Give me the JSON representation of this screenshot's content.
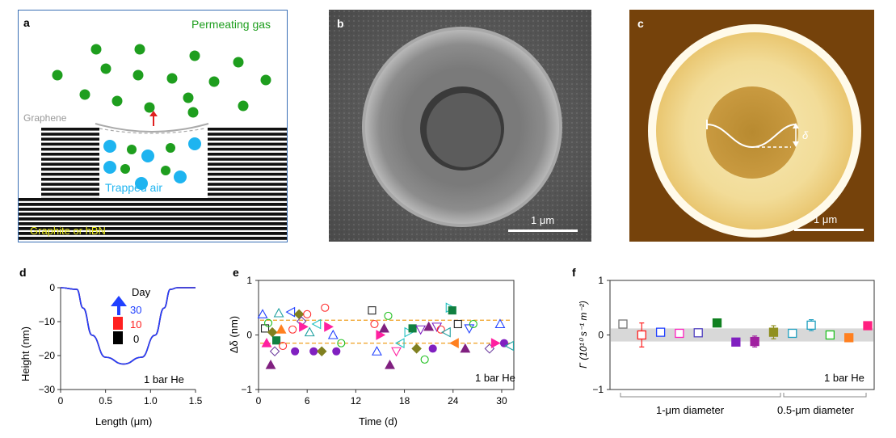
{
  "panel_a": {
    "label": "a",
    "permeating_gas": "Permeating gas",
    "graphene": "Graphene",
    "trapped_air": "Trapped air",
    "substrate": "Graphite or  hBN",
    "colors": {
      "gas_green": "#1e9e1e",
      "air_blue": "#1eb4f0",
      "arrow_red": "#e02020",
      "border": "#3a6fb5",
      "text_yellow": "#e8e81a"
    }
  },
  "panel_b": {
    "label": "b",
    "scale": "1 μm"
  },
  "panel_c": {
    "label": "c",
    "scale": "1 μm",
    "delta": "δ"
  },
  "chart_data": [
    {
      "panel": "d",
      "type": "line",
      "xlabel": "Length (μm)",
      "ylabel": "Height (nm)",
      "xlim": [
        0,
        1.5
      ],
      "ylim": [
        -30,
        0
      ],
      "xticks": [
        "0",
        "0.5",
        "1.0",
        "1.5"
      ],
      "yticks": [
        "0",
        "−10",
        "−20",
        "−30"
      ],
      "legend_title": "Day",
      "annotation": "1 bar He",
      "series": [
        {
          "name": "30",
          "color": "#2040ff",
          "x": [
            0,
            0.18,
            0.25,
            0.35,
            0.5,
            0.7,
            0.9,
            1.05,
            1.15,
            1.22,
            1.3,
            1.5
          ],
          "y": [
            0,
            -0.5,
            -6,
            -14,
            -20.5,
            -22.5,
            -20.5,
            -14,
            -6,
            -0.5,
            0,
            0
          ]
        },
        {
          "name": "10",
          "color": "#ff2020",
          "x": [
            0,
            0.18,
            0.25,
            0.35,
            0.5,
            0.7,
            0.9,
            1.05,
            1.15,
            1.22,
            1.3,
            1.5
          ],
          "y": [
            0,
            -0.5,
            -6,
            -14,
            -20.5,
            -22.5,
            -20.5,
            -14,
            -6,
            -0.5,
            0,
            0
          ]
        },
        {
          "name": "0",
          "color": "#000000",
          "x": [
            0,
            0.18,
            0.25,
            0.35,
            0.5,
            0.7,
            0.9,
            1.05,
            1.15,
            1.22,
            1.3,
            1.5
          ],
          "y": [
            0,
            -0.5,
            -6,
            -14,
            -20.5,
            -22.5,
            -20.5,
            -14,
            -6,
            -0.5,
            0,
            0
          ]
        }
      ]
    },
    {
      "panel": "e",
      "type": "scatter",
      "xlabel": "Time (d)",
      "ylabel": "Δδ (nm)",
      "xlim": [
        0,
        31.5
      ],
      "ylim": [
        -1,
        1
      ],
      "xticks": [
        "0",
        "6",
        "12",
        "18",
        "24",
        "30"
      ],
      "yticks": [
        "−1",
        "0",
        "1"
      ],
      "annotation": "1 bar He",
      "reference_lines": [
        0.27,
        -0.15
      ],
      "points": [
        {
          "x": 0.5,
          "y": 0.38,
          "m": "tri",
          "c": "#2040ff",
          "f": false
        },
        {
          "x": 0.8,
          "y": 0.12,
          "m": "sq",
          "c": "#222222",
          "f": false
        },
        {
          "x": 1.0,
          "y": -0.15,
          "m": "tri",
          "c": "#ff20a0",
          "f": true
        },
        {
          "x": 1.2,
          "y": 0.22,
          "m": "circ",
          "c": "#20c020",
          "f": false
        },
        {
          "x": 1.5,
          "y": -0.55,
          "m": "tri",
          "c": "#802080",
          "f": true
        },
        {
          "x": 1.7,
          "y": 0.05,
          "m": "diam",
          "c": "#808020",
          "f": true
        },
        {
          "x": 2.0,
          "y": -0.3,
          "m": "diam",
          "c": "#7040a0",
          "f": false
        },
        {
          "x": 2.2,
          "y": -0.1,
          "m": "sq",
          "c": "#108040",
          "f": true
        },
        {
          "x": 2.5,
          "y": 0.4,
          "m": "tri",
          "c": "#20a0a0",
          "f": false
        },
        {
          "x": 2.8,
          "y": 0.1,
          "m": "tri",
          "c": "#ff8020",
          "f": true
        },
        {
          "x": 3.0,
          "y": -0.2,
          "m": "circ",
          "c": "#ff3030",
          "f": false
        },
        {
          "x": 4.0,
          "y": 0.42,
          "m": "trl",
          "c": "#2040ff",
          "f": false
        },
        {
          "x": 4.2,
          "y": 0.1,
          "m": "circ",
          "c": "#ff3030",
          "f": false
        },
        {
          "x": 4.5,
          "y": -0.3,
          "m": "circ",
          "c": "#8020c0",
          "f": true
        },
        {
          "x": 5.0,
          "y": 0.38,
          "m": "diam",
          "c": "#808020",
          "f": true
        },
        {
          "x": 5.3,
          "y": 0.25,
          "m": "diam",
          "c": "#7040a0",
          "f": false
        },
        {
          "x": 5.5,
          "y": 0.15,
          "m": "trr",
          "c": "#ff20a0",
          "f": true
        },
        {
          "x": 6.0,
          "y": 0.38,
          "m": "circ",
          "c": "#ff3030",
          "f": false
        },
        {
          "x": 6.3,
          "y": 0.05,
          "m": "tri",
          "c": "#20a0a0",
          "f": false
        },
        {
          "x": 6.8,
          "y": -0.3,
          "m": "circ",
          "c": "#8020c0",
          "f": true
        },
        {
          "x": 7.2,
          "y": 0.2,
          "m": "trl",
          "c": "#20c0c0",
          "f": false
        },
        {
          "x": 7.8,
          "y": -0.3,
          "m": "diam",
          "c": "#808020",
          "f": true
        },
        {
          "x": 8.2,
          "y": 0.5,
          "m": "circ",
          "c": "#ff3030",
          "f": false
        },
        {
          "x": 8.6,
          "y": 0.15,
          "m": "trr",
          "c": "#ff20a0",
          "f": true
        },
        {
          "x": 9.2,
          "y": 0.0,
          "m": "tri",
          "c": "#2040ff",
          "f": false
        },
        {
          "x": 9.6,
          "y": -0.3,
          "m": "circ",
          "c": "#8020c0",
          "f": true
        },
        {
          "x": 10.2,
          "y": -0.15,
          "m": "circ",
          "c": "#20c020",
          "f": false
        },
        {
          "x": 14.0,
          "y": 0.45,
          "m": "sq",
          "c": "#222222",
          "f": false
        },
        {
          "x": 14.3,
          "y": 0.2,
          "m": "circ",
          "c": "#ff3030",
          "f": false
        },
        {
          "x": 14.6,
          "y": -0.3,
          "m": "tri",
          "c": "#2040ff",
          "f": false
        },
        {
          "x": 15.0,
          "y": 0.0,
          "m": "trr",
          "c": "#ff20a0",
          "f": true
        },
        {
          "x": 15.5,
          "y": 0.12,
          "m": "tri",
          "c": "#802080",
          "f": true
        },
        {
          "x": 16.0,
          "y": 0.35,
          "m": "circ",
          "c": "#20c020",
          "f": false
        },
        {
          "x": 16.2,
          "y": -0.55,
          "m": "tri",
          "c": "#802080",
          "f": true
        },
        {
          "x": 17.0,
          "y": -0.3,
          "m": "trd",
          "c": "#ff20a0",
          "f": false
        },
        {
          "x": 17.5,
          "y": -0.15,
          "m": "trl",
          "c": "#20c0c0",
          "f": false
        },
        {
          "x": 18.5,
          "y": 0.05,
          "m": "trr",
          "c": "#20c0c0",
          "f": false
        },
        {
          "x": 19.0,
          "y": 0.12,
          "m": "sq",
          "c": "#108040",
          "f": true
        },
        {
          "x": 19.5,
          "y": -0.25,
          "m": "diam",
          "c": "#808020",
          "f": true
        },
        {
          "x": 20.0,
          "y": 0.1,
          "m": "trd",
          "c": "#8020c0",
          "f": false
        },
        {
          "x": 20.5,
          "y": -0.45,
          "m": "circ",
          "c": "#20c020",
          "f": false
        },
        {
          "x": 21.0,
          "y": 0.15,
          "m": "tri",
          "c": "#802080",
          "f": true
        },
        {
          "x": 21.5,
          "y": -0.25,
          "m": "circ",
          "c": "#8020c0",
          "f": true
        },
        {
          "x": 22.0,
          "y": 0.15,
          "m": "trd",
          "c": "#8020c0",
          "f": false
        },
        {
          "x": 22.5,
          "y": 0.1,
          "m": "circ",
          "c": "#ff3030",
          "f": false
        },
        {
          "x": 23.2,
          "y": 0.05,
          "m": "trl",
          "c": "#20a0a0",
          "f": false
        },
        {
          "x": 23.6,
          "y": 0.5,
          "m": "trr",
          "c": "#20c0c0",
          "f": false
        },
        {
          "x": 23.9,
          "y": 0.45,
          "m": "sq",
          "c": "#108040",
          "f": true
        },
        {
          "x": 24.2,
          "y": -0.15,
          "m": "trl",
          "c": "#ff8020",
          "f": true
        },
        {
          "x": 24.6,
          "y": 0.2,
          "m": "sq",
          "c": "#222222",
          "f": false
        },
        {
          "x": 25.5,
          "y": -0.25,
          "m": "tri",
          "c": "#802080",
          "f": true
        },
        {
          "x": 26.0,
          "y": 0.12,
          "m": "trd",
          "c": "#2040ff",
          "f": false
        },
        {
          "x": 26.5,
          "y": 0.2,
          "m": "circ",
          "c": "#20c020",
          "f": false
        },
        {
          "x": 28.5,
          "y": -0.25,
          "m": "diam",
          "c": "#7040a0",
          "f": false
        },
        {
          "x": 29.2,
          "y": -0.15,
          "m": "trr",
          "c": "#ff20a0",
          "f": true
        },
        {
          "x": 29.8,
          "y": 0.2,
          "m": "tri",
          "c": "#2040ff",
          "f": false
        },
        {
          "x": 30.3,
          "y": -0.15,
          "m": "circ",
          "c": "#8020c0",
          "f": true
        },
        {
          "x": 31.0,
          "y": -0.2,
          "m": "trl",
          "c": "#20a0a0",
          "f": false
        }
      ]
    },
    {
      "panel": "f",
      "type": "scatter",
      "ylabel": "Γ (10¹⁰ s⁻¹ m⁻²)",
      "ylim": [
        -1,
        1
      ],
      "yticks": [
        "−1",
        "0",
        "1"
      ],
      "annotation": "1 bar He",
      "band": [
        -0.12,
        0.12
      ],
      "group_labels": [
        "1-μm diameter",
        "0.5-μm diameter"
      ],
      "points": [
        {
          "y": 0.2,
          "err": 0.02,
          "c": "#777777",
          "f": false
        },
        {
          "y": 0.0,
          "err": 0.22,
          "c": "#ff2020",
          "f": false
        },
        {
          "y": 0.05,
          "err": 0.02,
          "c": "#2040ff",
          "f": false
        },
        {
          "y": 0.03,
          "err": 0.02,
          "c": "#ff20c0",
          "f": false
        },
        {
          "y": 0.04,
          "err": 0.02,
          "c": "#5040c0",
          "f": false
        },
        {
          "y": 0.22,
          "err": 0.02,
          "c": "#108020",
          "f": true
        },
        {
          "y": -0.13,
          "err": 0.02,
          "c": "#8020c0",
          "f": true
        },
        {
          "y": -0.12,
          "err": 0.1,
          "c": "#a020a0",
          "f": true
        },
        {
          "y": 0.05,
          "err": 0.12,
          "c": "#909020",
          "f": true
        },
        {
          "y": 0.03,
          "err": 0.03,
          "c": "#20a0c0",
          "f": false
        },
        {
          "y": 0.18,
          "err": 0.1,
          "c": "#20a0c0",
          "f": false
        },
        {
          "y": 0.0,
          "err": 0.02,
          "c": "#20c020",
          "f": false
        },
        {
          "y": -0.05,
          "err": 0.02,
          "c": "#ff8020",
          "f": true
        },
        {
          "y": 0.17,
          "err": 0.04,
          "c": "#ff2080",
          "f": true
        }
      ]
    }
  ]
}
